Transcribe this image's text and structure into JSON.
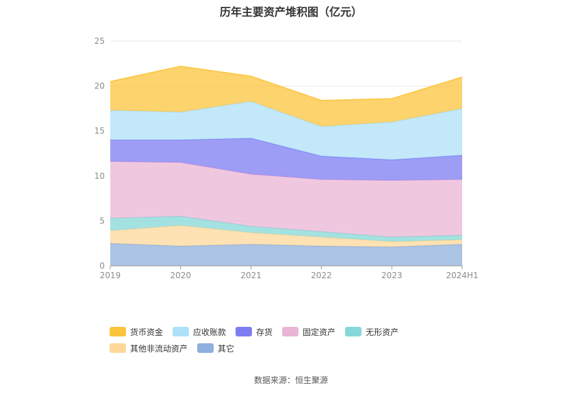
{
  "title": "历年主要资产堆积图（亿元）",
  "source": "数据来源：恒生聚源",
  "chart_data": {
    "type": "area",
    "stacked": true,
    "title": "历年主要资产堆积图（亿元）",
    "xlabel": "",
    "ylabel": "",
    "categories": [
      "2019",
      "2020",
      "2021",
      "2022",
      "2023",
      "2024H1"
    ],
    "ylim": [
      0,
      25
    ],
    "yticks": [
      0,
      5,
      10,
      15,
      20,
      25
    ],
    "grid": true,
    "legend_position": "bottom",
    "series": [
      {
        "name": "其它",
        "color": "#8fb0dc",
        "values": [
          2.5,
          2.2,
          2.4,
          2.2,
          2.1,
          2.4
        ]
      },
      {
        "name": "其他非流动资产",
        "color": "#fdd89a",
        "values": [
          1.4,
          2.3,
          1.3,
          1.0,
          0.6,
          0.5
        ]
      },
      {
        "name": "无形资产",
        "color": "#86d8d8",
        "values": [
          1.4,
          1.0,
          0.7,
          0.6,
          0.5,
          0.5
        ]
      },
      {
        "name": "固定资产",
        "color": "#e9b5d6",
        "values": [
          6.3,
          6.0,
          5.8,
          5.8,
          6.3,
          6.2
        ]
      },
      {
        "name": "存货",
        "color": "#7d7cf3",
        "values": [
          2.4,
          2.5,
          4.0,
          2.6,
          2.3,
          2.7
        ]
      },
      {
        "name": "应收账款",
        "color": "#aee0f8",
        "values": [
          3.3,
          3.1,
          4.1,
          3.3,
          4.2,
          5.2
        ]
      },
      {
        "name": "货币资金",
        "color": "#fcc43c",
        "values": [
          3.2,
          5.1,
          2.8,
          2.9,
          2.6,
          3.5
        ]
      }
    ]
  },
  "legend": [
    {
      "label": "货币资金",
      "color": "#fcc43c"
    },
    {
      "label": "应收账款",
      "color": "#aee0f8"
    },
    {
      "label": "存货",
      "color": "#7d7cf3"
    },
    {
      "label": "固定资产",
      "color": "#e9b5d6"
    },
    {
      "label": "无形资产",
      "color": "#86d8d8"
    },
    {
      "label": "其他非流动资产",
      "color": "#fdd89a"
    },
    {
      "label": "其它",
      "color": "#8fb0dc"
    }
  ]
}
